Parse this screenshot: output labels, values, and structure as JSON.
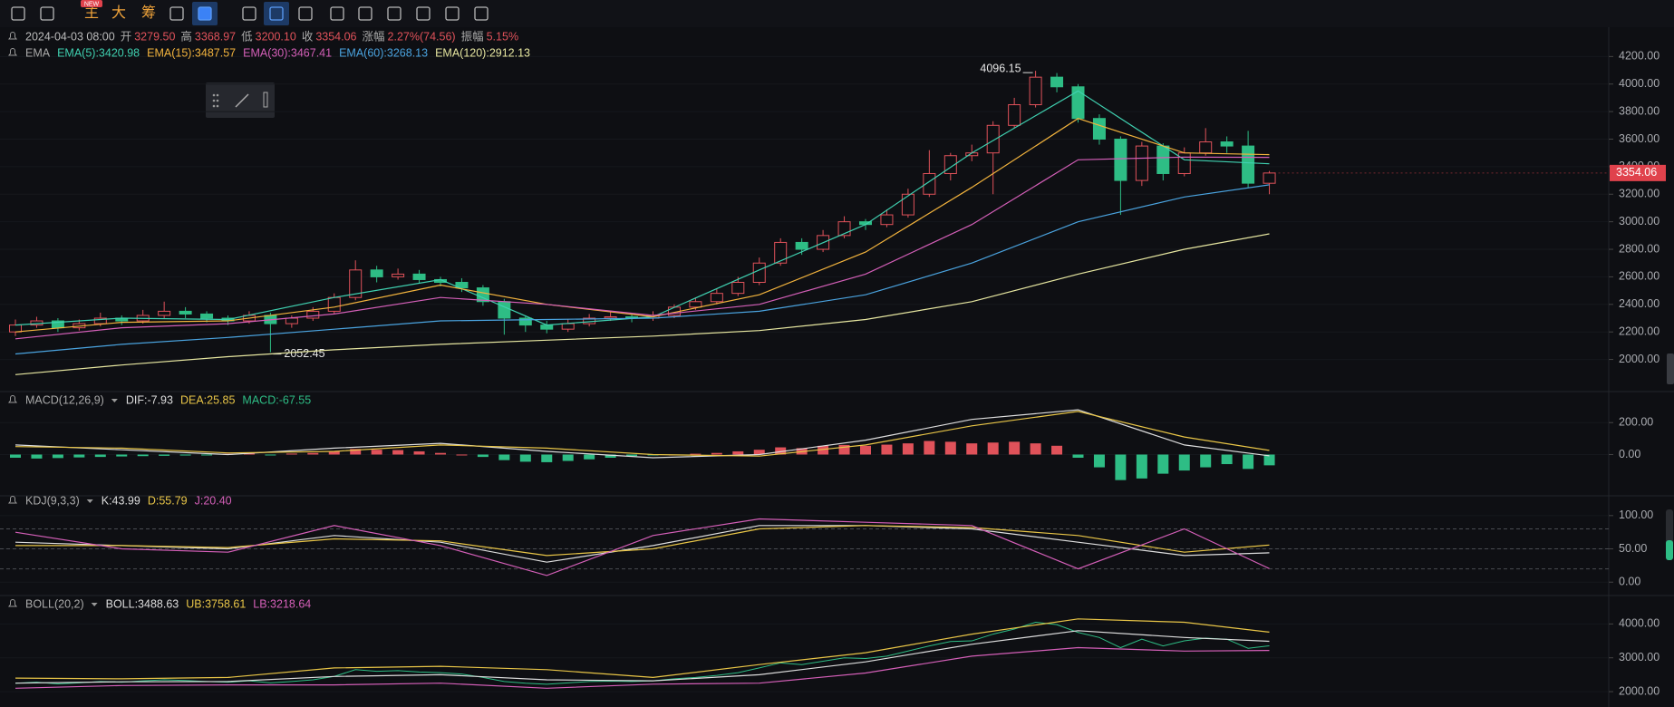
{
  "toolbar": {
    "badge": "NEW",
    "items": [
      "主",
      "大",
      "筹"
    ]
  },
  "info": {
    "date": "2024-04-03 08:00",
    "fields": [
      [
        "开",
        "3279.50"
      ],
      [
        "高",
        "3368.97"
      ],
      [
        "低",
        "3200.10"
      ],
      [
        "收",
        "3354.06"
      ],
      [
        "涨幅",
        "2.27%(74.56)"
      ],
      [
        "振幅",
        "5.15%"
      ]
    ]
  },
  "chart_data": [
    {
      "type": "candlestick",
      "title": "EMA",
      "up_color": "#e0525a",
      "down_color": "#2ebd85",
      "ohlc": [
        [
          2200,
          2290,
          2170,
          2250
        ],
        [
          2250,
          2310,
          2230,
          2280
        ],
        [
          2280,
          2300,
          2200,
          2230
        ],
        [
          2230,
          2290,
          2210,
          2260
        ],
        [
          2260,
          2340,
          2240,
          2300
        ],
        [
          2300,
          2320,
          2250,
          2280
        ],
        [
          2280,
          2360,
          2260,
          2320
        ],
        [
          2320,
          2420,
          2300,
          2350
        ],
        [
          2350,
          2380,
          2300,
          2330
        ],
        [
          2330,
          2350,
          2270,
          2300
        ],
        [
          2300,
          2320,
          2250,
          2280
        ],
        [
          2280,
          2350,
          2260,
          2320
        ],
        [
          2320,
          2340,
          2052.45,
          2260
        ],
        [
          2260,
          2320,
          2230,
          2300
        ],
        [
          2300,
          2380,
          2280,
          2350
        ],
        [
          2350,
          2480,
          2330,
          2450
        ],
        [
          2450,
          2720,
          2430,
          2650
        ],
        [
          2650,
          2680,
          2560,
          2600
        ],
        [
          2600,
          2660,
          2580,
          2620
        ],
        [
          2620,
          2650,
          2550,
          2580
        ],
        [
          2580,
          2600,
          2530,
          2560
        ],
        [
          2560,
          2590,
          2490,
          2520
        ],
        [
          2520,
          2540,
          2390,
          2420
        ],
        [
          2420,
          2440,
          2180,
          2300
        ],
        [
          2300,
          2320,
          2200,
          2250
        ],
        [
          2250,
          2280,
          2190,
          2220
        ],
        [
          2220,
          2290,
          2200,
          2260
        ],
        [
          2260,
          2330,
          2240,
          2300
        ],
        [
          2300,
          2350,
          2280,
          2310
        ],
        [
          2310,
          2330,
          2270,
          2300
        ],
        [
          2300,
          2350,
          2280,
          2320
        ],
        [
          2320,
          2400,
          2300,
          2380
        ],
        [
          2380,
          2450,
          2360,
          2420
        ],
        [
          2420,
          2510,
          2400,
          2480
        ],
        [
          2480,
          2600,
          2460,
          2560
        ],
        [
          2560,
          2740,
          2540,
          2700
        ],
        [
          2700,
          2880,
          2680,
          2850
        ],
        [
          2850,
          2880,
          2760,
          2800
        ],
        [
          2800,
          2940,
          2780,
          2900
        ],
        [
          2900,
          3040,
          2880,
          3000
        ],
        [
          3000,
          3020,
          2940,
          2980
        ],
        [
          2980,
          3090,
          2960,
          3050
        ],
        [
          3050,
          3240,
          3030,
          3200
        ],
        [
          3200,
          3520,
          3180,
          3350
        ],
        [
          3350,
          3500,
          3300,
          3480
        ],
        [
          3480,
          3560,
          3440,
          3500
        ],
        [
          3500,
          3730,
          3200,
          3700
        ],
        [
          3700,
          3900,
          3680,
          3850
        ],
        [
          3850,
          4096.15,
          3830,
          4050
        ],
        [
          4050,
          4080,
          3940,
          3980
        ],
        [
          3980,
          4000,
          3720,
          3750
        ],
        [
          3750,
          3780,
          3560,
          3600
        ],
        [
          3600,
          3620,
          3050,
          3300
        ],
        [
          3300,
          3580,
          3260,
          3550
        ],
        [
          3550,
          3570,
          3300,
          3350
        ],
        [
          3350,
          3540,
          3330,
          3500
        ],
        [
          3500,
          3680,
          3480,
          3580
        ],
        [
          3580,
          3620,
          3500,
          3550
        ],
        [
          3550,
          3660,
          3250,
          3280
        ],
        [
          3279.5,
          3368.97,
          3200.1,
          3354.06
        ]
      ],
      "x": [
        0,
        5,
        10,
        15,
        20,
        25,
        30,
        35,
        40,
        45,
        50,
        55,
        59
      ],
      "series": [
        {
          "name": "EMA(5):3420.98",
          "color": "#3fd0b0",
          "values": [
            2250,
            2300,
            2290,
            2450,
            2580,
            2250,
            2310,
            2650,
            2980,
            3500,
            3950,
            3450,
            3420.98
          ]
        },
        {
          "name": "EMA(15):3487.57",
          "color": "#f2b33d",
          "values": [
            2200,
            2270,
            2280,
            2380,
            2540,
            2400,
            2310,
            2470,
            2780,
            3250,
            3750,
            3500,
            3487.57
          ]
        },
        {
          "name": "EMA(30):3467.41",
          "color": "#d45fb8",
          "values": [
            2150,
            2230,
            2260,
            2330,
            2450,
            2400,
            2320,
            2400,
            2620,
            2980,
            3450,
            3470,
            3467.41
          ]
        },
        {
          "name": "EMA(60):3268.13",
          "color": "#4aa3df",
          "values": [
            2040,
            2110,
            2160,
            2220,
            2280,
            2290,
            2300,
            2350,
            2470,
            2700,
            3000,
            3180,
            3268.13
          ]
        },
        {
          "name": "EMA(120):2912.13",
          "color": "#e6e6a0",
          "values": [
            1890,
            1960,
            2020,
            2070,
            2110,
            2140,
            2170,
            2210,
            2290,
            2420,
            2620,
            2800,
            2912.13
          ]
        }
      ],
      "ylim": [
        1780,
        4380
      ],
      "yticks": [
        {
          "value": 2000,
          "label": "2000.00"
        },
        {
          "value": 2200,
          "label": "2200.00"
        },
        {
          "value": 2400,
          "label": "2400.00"
        },
        {
          "value": 2600,
          "label": "2600.00"
        },
        {
          "value": 2800,
          "label": "2800.00"
        },
        {
          "value": 3000,
          "label": "3000.00"
        },
        {
          "value": 3200,
          "label": "3200.00"
        },
        {
          "value": 3400,
          "label": "3400.00"
        },
        {
          "value": 3600,
          "label": "3600.00"
        },
        {
          "value": 3800,
          "label": "3800.00"
        },
        {
          "value": 4000,
          "label": "4000.00"
        },
        {
          "value": 4200,
          "label": "4200.00"
        }
      ],
      "price_tag": "3354.06",
      "annotations": {
        "high": "4096.15",
        "low": "2052.45"
      }
    },
    {
      "type": "macd",
      "title": "MACD(12,26,9)",
      "x": [
        0,
        5,
        10,
        15,
        20,
        25,
        30,
        35,
        40,
        45,
        50,
        55,
        59
      ],
      "series": [
        {
          "name": "DIF:-7.93",
          "color": "#dddddd",
          "values": [
            60,
            30,
            0,
            40,
            70,
            20,
            -20,
            0,
            90,
            220,
            280,
            60,
            -7.93
          ]
        },
        {
          "name": "DEA:25.85",
          "color": "#e8c547",
          "values": [
            50,
            40,
            10,
            20,
            60,
            40,
            0,
            -10,
            60,
            180,
            270,
            110,
            25.85
          ]
        }
      ],
      "histogram": {
        "name": "MACD:-67.55",
        "color": "#2ebd85",
        "up_color": "#e0525a",
        "down_color": "#2ebd85",
        "values": [
          -20,
          -25,
          -22,
          -18,
          -15,
          -12,
          -10,
          -8,
          -6,
          -5,
          5,
          8,
          -5,
          6,
          10,
          20,
          35,
          30,
          28,
          20,
          10,
          0,
          -15,
          -35,
          -45,
          -48,
          -40,
          -30,
          -20,
          -10,
          -5,
          0,
          5,
          10,
          20,
          30,
          45,
          40,
          55,
          60,
          55,
          62,
          70,
          85,
          80,
          70,
          75,
          80,
          70,
          55,
          -20,
          -80,
          -160,
          -150,
          -120,
          -100,
          -80,
          -60,
          -90,
          -67.55
        ]
      },
      "ylim": [
        -230,
        400
      ],
      "yticks": [
        {
          "value": 0,
          "label": "0.00"
        },
        {
          "value": 200,
          "label": "200.00"
        }
      ]
    },
    {
      "type": "line",
      "title": "KDJ(9,3,3)",
      "x": [
        0,
        5,
        10,
        15,
        20,
        25,
        30,
        35,
        40,
        45,
        50,
        55,
        59
      ],
      "series": [
        {
          "name": "K:43.99",
          "color": "#dddddd",
          "values": [
            60,
            55,
            50,
            70,
            60,
            30,
            55,
            85,
            85,
            80,
            60,
            40,
            43.99
          ]
        },
        {
          "name": "D:55.79",
          "color": "#e8c547",
          "values": [
            55,
            55,
            52,
            65,
            62,
            40,
            50,
            80,
            85,
            82,
            70,
            45,
            55.79
          ]
        },
        {
          "name": "J:20.40",
          "color": "#d45fb8",
          "values": [
            75,
            50,
            45,
            85,
            55,
            10,
            70,
            95,
            90,
            85,
            20,
            80,
            20.4
          ]
        }
      ],
      "levels": [
        20,
        50,
        80
      ],
      "ylim": [
        -16,
        112
      ],
      "yticks": [
        {
          "value": 0,
          "label": "0.00"
        },
        {
          "value": 50,
          "label": "50.00"
        },
        {
          "value": 100,
          "label": "100.00"
        }
      ]
    },
    {
      "type": "line",
      "title": "BOLL(20,2)",
      "x": [
        0,
        5,
        10,
        15,
        20,
        25,
        30,
        35,
        40,
        45,
        50,
        55,
        59
      ],
      "series": [
        {
          "name": "BOLL:3488.63",
          "color": "#dddddd",
          "values": [
            2250,
            2290,
            2300,
            2450,
            2500,
            2350,
            2320,
            2500,
            2880,
            3400,
            3800,
            3600,
            3488.63
          ]
        },
        {
          "name": "UB:3758.61",
          "color": "#e8c547",
          "values": [
            2400,
            2380,
            2420,
            2700,
            2750,
            2650,
            2420,
            2800,
            3150,
            3700,
            4150,
            4050,
            3758.61
          ]
        },
        {
          "name": "LB:3218.64",
          "color": "#d45fb8",
          "values": [
            2100,
            2180,
            2200,
            2200,
            2250,
            2100,
            2220,
            2250,
            2550,
            3050,
            3300,
            3200,
            3218.64
          ]
        }
      ],
      "ylim": [
        1600,
        4760
      ],
      "yticks": [
        {
          "value": 2000,
          "label": "2000.00"
        },
        {
          "value": 3000,
          "label": "3000.00"
        },
        {
          "value": 4000,
          "label": "4000.00"
        }
      ]
    }
  ]
}
